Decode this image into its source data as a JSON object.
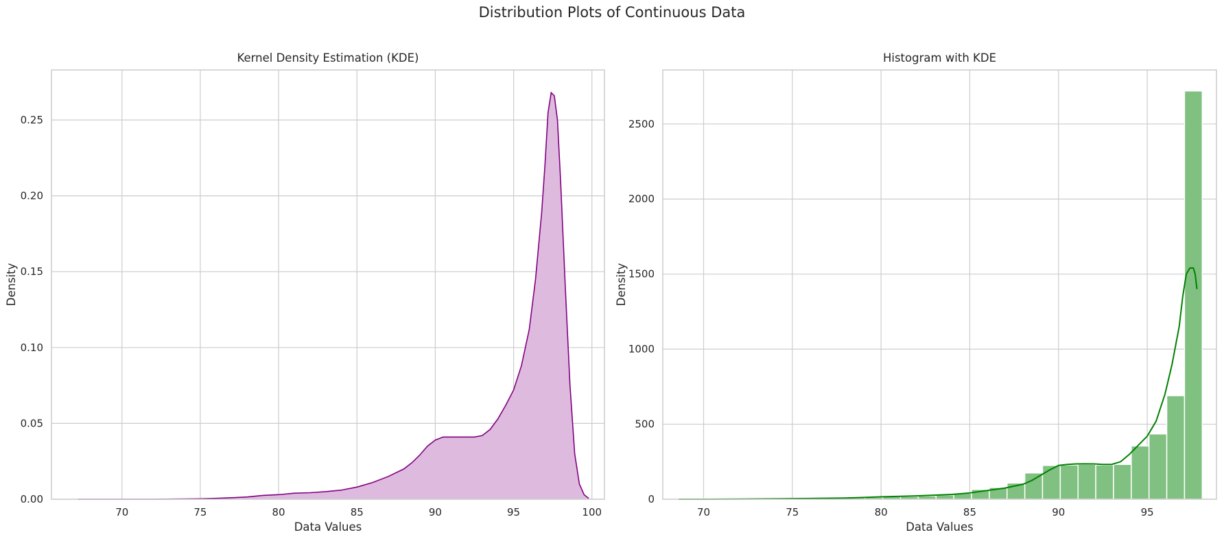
{
  "suptitle": "Distribution Plots of Continuous Data",
  "chart_data": [
    {
      "type": "area",
      "title": "Kernel Density Estimation (KDE)",
      "xlabel": "Data Values",
      "ylabel": "Density",
      "xlim": [
        65.5,
        100.8
      ],
      "ylim": [
        0,
        0.283
      ],
      "xticks": [
        70,
        75,
        80,
        85,
        90,
        95,
        100
      ],
      "yticks": [
        0.0,
        0.05,
        0.1,
        0.15,
        0.2,
        0.25
      ],
      "ytick_labels": [
        "0.00",
        "0.05",
        "0.10",
        "0.15",
        "0.20",
        "0.25"
      ],
      "grid": true,
      "line_color": "#800080",
      "fill_color": "#dfbadf",
      "series": [
        {
          "x": [
            67.2,
            70,
            72,
            74,
            75,
            76,
            77,
            78,
            79,
            80,
            81,
            82,
            83,
            84,
            85,
            86,
            87,
            88,
            88.5,
            89,
            89.5,
            90,
            90.5,
            91,
            91.5,
            92,
            92.5,
            93,
            93.5,
            94,
            94.5,
            95,
            95.5,
            96,
            96.4,
            96.8,
            97.0,
            97.2,
            97.4,
            97.6,
            97.8,
            98.0,
            98.3,
            98.6,
            98.9,
            99.2,
            99.5,
            99.8
          ],
          "y": [
            0.0,
            0.0,
            0.0,
            0.0002,
            0.0003,
            0.0006,
            0.001,
            0.0015,
            0.0025,
            0.003,
            0.004,
            0.0043,
            0.005,
            0.006,
            0.008,
            0.011,
            0.015,
            0.02,
            0.024,
            0.029,
            0.035,
            0.039,
            0.041,
            0.041,
            0.041,
            0.041,
            0.041,
            0.042,
            0.046,
            0.053,
            0.062,
            0.072,
            0.088,
            0.112,
            0.145,
            0.19,
            0.22,
            0.255,
            0.268,
            0.266,
            0.25,
            0.21,
            0.14,
            0.075,
            0.03,
            0.01,
            0.003,
            0.0005
          ]
        }
      ]
    },
    {
      "type": "bar",
      "title": "Histogram with KDE",
      "xlabel": "Data Values",
      "ylabel": "Density",
      "xlim": [
        67.7,
        98.9
      ],
      "ylim": [
        0,
        2860
      ],
      "xticks": [
        70,
        75,
        80,
        85,
        90,
        95
      ],
      "yticks": [
        0,
        500,
        1000,
        1500,
        2000,
        2500
      ],
      "grid": true,
      "bar_color": "#80c080",
      "line_color": "#008000",
      "bin_width": 1.0,
      "bins": [
        {
          "x": 68.6,
          "value": 3
        },
        {
          "x": 69.6,
          "value": 3
        },
        {
          "x": 70.6,
          "value": 3
        },
        {
          "x": 71.6,
          "value": 3
        },
        {
          "x": 72.6,
          "value": 3
        },
        {
          "x": 73.6,
          "value": 3
        },
        {
          "x": 74.6,
          "value": 4
        },
        {
          "x": 75.6,
          "value": 4
        },
        {
          "x": 76.6,
          "value": 5
        },
        {
          "x": 77.6,
          "value": 7
        },
        {
          "x": 78.6,
          "value": 10
        },
        {
          "x": 79.6,
          "value": 13
        },
        {
          "x": 80.6,
          "value": 17
        },
        {
          "x": 81.6,
          "value": 18
        },
        {
          "x": 82.6,
          "value": 22
        },
        {
          "x": 83.6,
          "value": 28
        },
        {
          "x": 84.6,
          "value": 40
        },
        {
          "x": 85.6,
          "value": 65
        },
        {
          "x": 86.6,
          "value": 78
        },
        {
          "x": 87.6,
          "value": 108
        },
        {
          "x": 88.6,
          "value": 175
        },
        {
          "x": 89.6,
          "value": 225
        },
        {
          "x": 90.6,
          "value": 228
        },
        {
          "x": 91.6,
          "value": 232
        },
        {
          "x": 92.6,
          "value": 228
        },
        {
          "x": 93.6,
          "value": 232
        },
        {
          "x": 94.6,
          "value": 355
        },
        {
          "x": 95.6,
          "value": 435
        },
        {
          "x": 96.6,
          "value": 690
        },
        {
          "x": 97.6,
          "value": 2720
        }
      ],
      "kde": {
        "x": [
          68.6,
          70,
          72,
          74,
          76,
          78,
          80,
          82,
          84,
          85,
          86,
          87,
          88,
          88.5,
          89,
          89.5,
          90,
          90.5,
          91,
          91.5,
          92,
          92.5,
          93,
          93.5,
          94,
          94.5,
          95,
          95.5,
          96,
          96.4,
          96.8,
          97.0,
          97.2,
          97.4,
          97.6,
          97.7,
          97.8
        ],
        "y": [
          0,
          0,
          1,
          3,
          5,
          8,
          16,
          22,
          32,
          42,
          58,
          75,
          100,
          125,
          160,
          195,
          225,
          232,
          235,
          236,
          235,
          232,
          232,
          250,
          300,
          360,
          420,
          520,
          700,
          900,
          1150,
          1350,
          1500,
          1540,
          1540,
          1500,
          1400
        ]
      }
    }
  ]
}
